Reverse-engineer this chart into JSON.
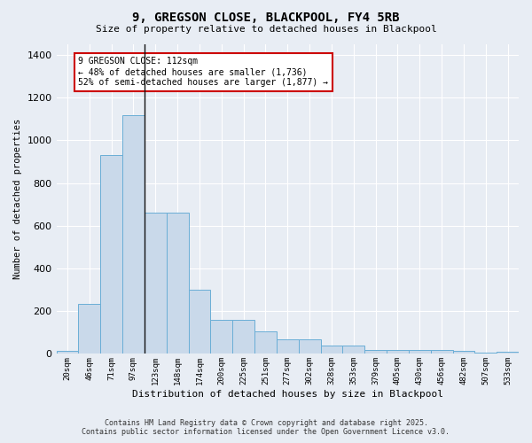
{
  "title1": "9, GREGSON CLOSE, BLACKPOOL, FY4 5RB",
  "title2": "Size of property relative to detached houses in Blackpool",
  "xlabel": "Distribution of detached houses by size in Blackpool",
  "ylabel": "Number of detached properties",
  "footnote1": "Contains HM Land Registry data © Crown copyright and database right 2025.",
  "footnote2": "Contains public sector information licensed under the Open Government Licence v3.0.",
  "categories": [
    "20sqm",
    "46sqm",
    "71sqm",
    "97sqm",
    "123sqm",
    "148sqm",
    "174sqm",
    "200sqm",
    "225sqm",
    "251sqm",
    "277sqm",
    "302sqm",
    "328sqm",
    "353sqm",
    "379sqm",
    "405sqm",
    "430sqm",
    "456sqm",
    "482sqm",
    "507sqm",
    "533sqm"
  ],
  "values": [
    15,
    235,
    930,
    1120,
    660,
    660,
    300,
    160,
    160,
    107,
    68,
    68,
    38,
    38,
    20,
    20,
    20,
    20,
    15,
    5,
    10
  ],
  "bar_color": "#c9d9ea",
  "bar_edge_color": "#6aaed6",
  "bg_color": "#e8edf4",
  "grid_color": "#ffffff",
  "vline_position": 3.5,
  "vline_color": "#111111",
  "annotation_text": "9 GREGSON CLOSE: 112sqm\n← 48% of detached houses are smaller (1,736)\n52% of semi-detached houses are larger (1,877) →",
  "annotation_box_color": "#ffffff",
  "annotation_box_edge": "#cc0000",
  "ylim": [
    0,
    1450
  ],
  "yticks": [
    0,
    200,
    400,
    600,
    800,
    1000,
    1200,
    1400
  ]
}
